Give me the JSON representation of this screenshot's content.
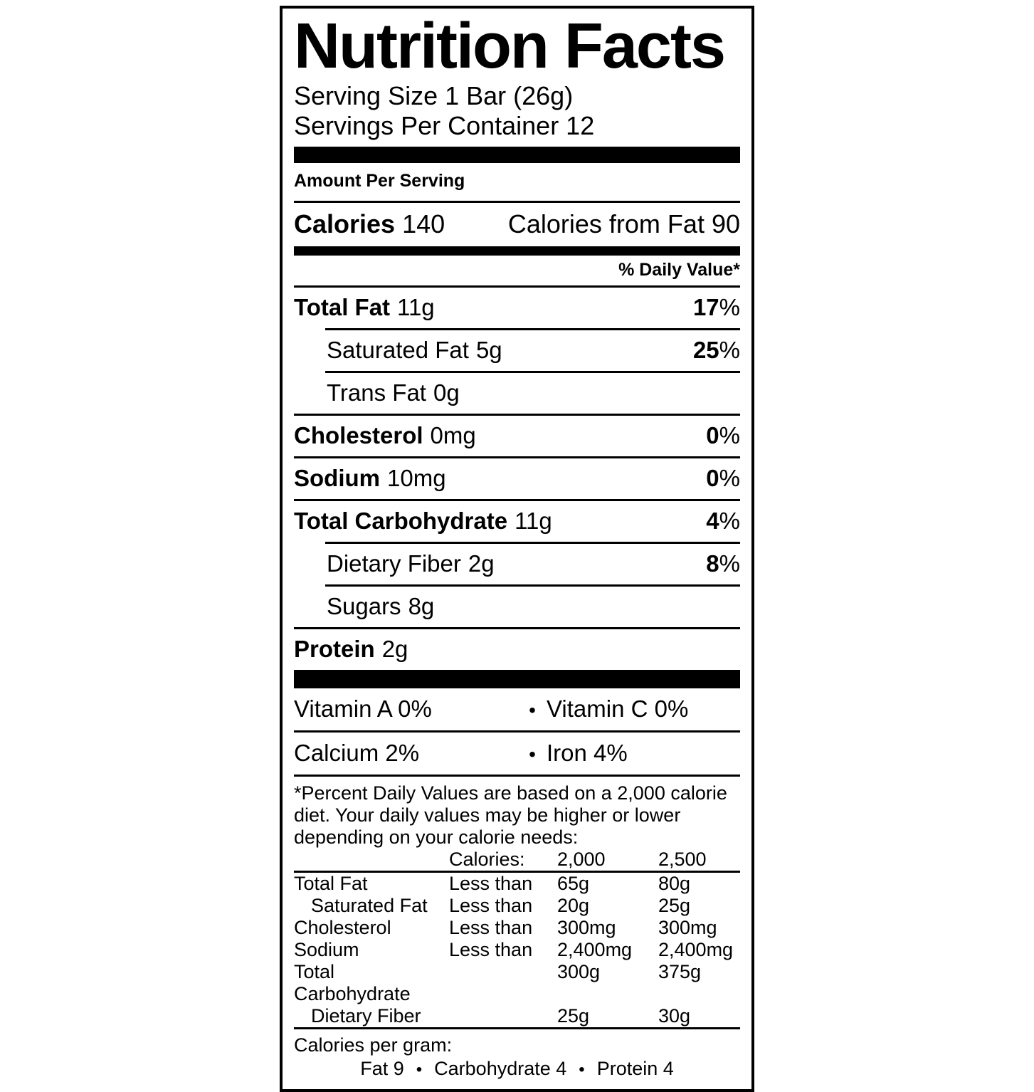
{
  "colors": {
    "ink": "#000000",
    "paper": "#ffffff"
  },
  "label": {
    "title": "Nutrition Facts",
    "serving_size": "Serving Size 1 Bar (26g)",
    "servings_per_container": "Servings Per Container 12",
    "amount_per_serving": "Amount Per Serving",
    "calories": {
      "label": "Calories",
      "value": "140",
      "from_fat_label": "Calories from Fat",
      "from_fat_value": "90"
    },
    "daily_value_header": "% Daily Value*",
    "percent_sign": "%",
    "bullet": "•",
    "nutrients": [
      {
        "name": "Total Fat",
        "amount": "11g",
        "dv": "17"
      },
      {
        "name": "Saturated Fat",
        "amount": "5g",
        "dv": "25"
      },
      {
        "name": "Trans Fat",
        "amount": "0g"
      },
      {
        "name": "Cholesterol",
        "amount": "0mg",
        "dv": "0"
      },
      {
        "name": "Sodium",
        "amount": "10mg",
        "dv": "0"
      },
      {
        "name": "Total Carbohydrate",
        "amount": "11g",
        "dv": "4"
      },
      {
        "name": "Dietary Fiber",
        "amount": "2g",
        "dv": "8"
      },
      {
        "name": "Sugars",
        "amount": "8g"
      },
      {
        "name": "Protein",
        "amount": "2g"
      }
    ],
    "vitamins": [
      {
        "left": "Vitamin A 0%",
        "right": "Vitamin C 0%"
      },
      {
        "left": "Calcium 2%",
        "right": "Iron 4%"
      }
    ],
    "footnote": "*Percent Daily Values are based on a 2,000 calorie diet. Your daily values may be higher or lower depending on your calorie needs:",
    "reference_table": {
      "header": {
        "calories_label": "Calories:",
        "col_2000": "2,000",
        "col_2500": "2,500"
      },
      "rows": [
        {
          "name": "Total Fat",
          "qualifier": "Less than",
          "v2000": "65g",
          "v2500": "80g"
        },
        {
          "name": "Saturated Fat",
          "qualifier": "Less than",
          "v2000": "20g",
          "v2500": "25g"
        },
        {
          "name": "Cholesterol",
          "qualifier": "Less than",
          "v2000": "300mg",
          "v2500": "300mg"
        },
        {
          "name": "Sodium",
          "qualifier": "Less than",
          "v2000": "2,400mg",
          "v2500": "2,400mg"
        },
        {
          "name": "Total Carbohydrate",
          "qualifier": "",
          "v2000": "300g",
          "v2500": "375g"
        },
        {
          "name": "Dietary Fiber",
          "qualifier": "",
          "v2000": "25g",
          "v2500": "30g"
        }
      ]
    },
    "calories_per_gram": {
      "label": "Calories per gram:",
      "items": [
        "Fat 9",
        "Carbohydrate 4",
        "Protein 4"
      ]
    }
  }
}
